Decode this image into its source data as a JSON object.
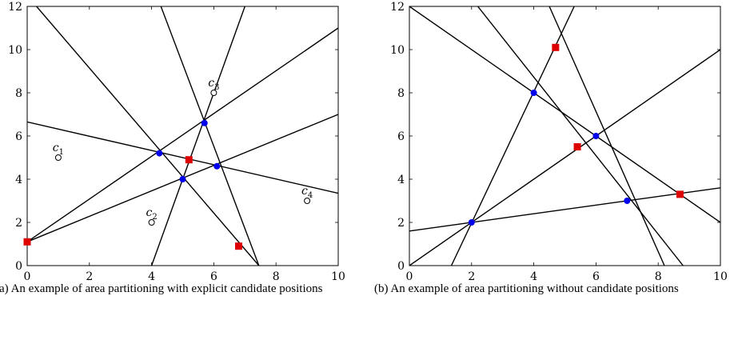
{
  "chart_data": [
    {
      "type": "line",
      "panel": "a",
      "xlim": [
        0,
        10
      ],
      "ylim": [
        0,
        12
      ],
      "xticks": [
        0,
        2,
        4,
        6,
        8,
        10
      ],
      "yticks": [
        0,
        2,
        4,
        6,
        8,
        10,
        12
      ],
      "grid": false,
      "lines": [
        {
          "x": [
            0,
            10
          ],
          "y": [
            6.65,
            3.35
          ]
        },
        {
          "x": [
            0,
            10
          ],
          "y": [
            1.1,
            7.0
          ]
        },
        {
          "x": [
            0,
            10
          ],
          "y": [
            1.1,
            11.0
          ]
        },
        {
          "x": [
            0.3,
            7.45
          ],
          "y": [
            12,
            0
          ]
        },
        {
          "x": [
            4.3,
            7.45
          ],
          "y": [
            12,
            0
          ]
        },
        {
          "x": [
            4.0,
            7.0
          ],
          "y": [
            0,
            12
          ]
        }
      ],
      "blue_points": [
        {
          "x": 4.25,
          "y": 5.2
        },
        {
          "x": 5.0,
          "y": 4.0
        },
        {
          "x": 5.7,
          "y": 6.6
        },
        {
          "x": 6.1,
          "y": 4.6
        }
      ],
      "red_points": [
        {
          "x": 0.0,
          "y": 1.1
        },
        {
          "x": 5.2,
          "y": 4.9
        },
        {
          "x": 6.8,
          "y": 0.9
        }
      ],
      "candidates": [
        {
          "label": "c",
          "sub": "1",
          "x": 1.0,
          "y": 5.0
        },
        {
          "label": "c",
          "sub": "2",
          "x": 4.0,
          "y": 2.0
        },
        {
          "label": "c",
          "sub": "3",
          "x": 6.0,
          "y": 8.0
        },
        {
          "label": "c",
          "sub": "4",
          "x": 9.0,
          "y": 3.0
        }
      ]
    },
    {
      "type": "line",
      "panel": "b",
      "xlim": [
        0,
        10
      ],
      "ylim": [
        0,
        12
      ],
      "xticks": [
        0,
        2,
        4,
        6,
        8,
        10
      ],
      "yticks": [
        0,
        2,
        4,
        6,
        8,
        10,
        12
      ],
      "grid": false,
      "lines": [
        {
          "x": [
            0,
            10
          ],
          "y": [
            1.6,
            3.6
          ]
        },
        {
          "x": [
            0,
            10
          ],
          "y": [
            12,
            2.0
          ]
        },
        {
          "x": [
            0.0,
            10
          ],
          "y": [
            0.0,
            10.0
          ]
        },
        {
          "x": [
            2.2,
            8.8
          ],
          "y": [
            12,
            0
          ]
        },
        {
          "x": [
            4.5,
            8.2
          ],
          "y": [
            12,
            0
          ]
        },
        {
          "x": [
            1.35,
            5.3
          ],
          "y": [
            0,
            12
          ]
        }
      ],
      "blue_points": [
        {
          "x": 2.0,
          "y": 2.0
        },
        {
          "x": 4.0,
          "y": 8.0
        },
        {
          "x": 6.0,
          "y": 6.0
        },
        {
          "x": 7.0,
          "y": 3.0
        }
      ],
      "red_points": [
        {
          "x": 4.7,
          "y": 10.1
        },
        {
          "x": 5.4,
          "y": 5.5
        },
        {
          "x": 8.7,
          "y": 3.3
        }
      ],
      "candidates": []
    }
  ],
  "captions": {
    "a": "(a) An example of area partitioning with explicit candidate positions",
    "b": "(b) An example of area partitioning without candidate positions"
  }
}
